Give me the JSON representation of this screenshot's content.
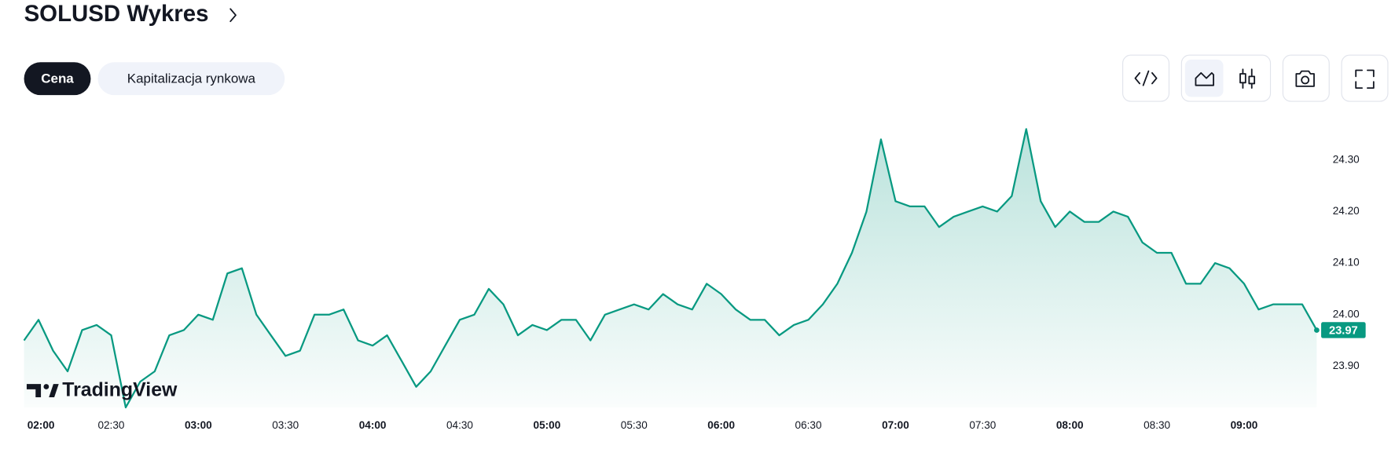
{
  "page_title": "SOLUSD Wykres",
  "tabs": [
    "Cena",
    "Kapitalizacja rynkowa"
  ],
  "watermark": "TradingView",
  "chart_data": {
    "type": "area",
    "color": "#089981",
    "x": [
      "02:00",
      "02:05",
      "02:10",
      "02:15",
      "02:20",
      "02:25",
      "02:30",
      "02:35",
      "02:40",
      "02:45",
      "02:50",
      "02:55",
      "03:00",
      "03:05",
      "03:10",
      "03:15",
      "03:20",
      "03:25",
      "03:30",
      "03:35",
      "03:40",
      "03:45",
      "03:50",
      "03:55",
      "04:00",
      "04:05",
      "04:10",
      "04:15",
      "04:20",
      "04:25",
      "04:30",
      "04:35",
      "04:40",
      "04:45",
      "04:50",
      "04:55",
      "05:00",
      "05:05",
      "05:10",
      "05:15",
      "05:20",
      "05:25",
      "05:30",
      "05:35",
      "05:40",
      "05:45",
      "05:50",
      "05:55",
      "06:00",
      "06:05",
      "06:10",
      "06:15",
      "06:20",
      "06:25",
      "06:30",
      "06:35",
      "06:40",
      "06:45",
      "06:50",
      "06:55",
      "07:00",
      "07:05",
      "07:10",
      "07:15",
      "07:20",
      "07:25",
      "07:30",
      "07:35",
      "07:40",
      "07:45",
      "07:50",
      "07:55",
      "08:00",
      "08:05",
      "08:10",
      "08:15",
      "08:20",
      "08:25",
      "08:30",
      "08:35",
      "08:40",
      "08:45",
      "08:50",
      "08:55",
      "09:00",
      "09:05",
      "09:10",
      "09:15",
      "09:20",
      "09:25"
    ],
    "values": [
      23.95,
      23.99,
      23.93,
      23.89,
      23.97,
      23.98,
      23.96,
      23.82,
      23.87,
      23.89,
      23.96,
      23.97,
      24.0,
      23.99,
      24.08,
      24.09,
      24.0,
      23.96,
      23.92,
      23.93,
      24.0,
      24.0,
      24.01,
      23.95,
      23.94,
      23.96,
      23.91,
      23.86,
      23.89,
      23.94,
      23.99,
      24.0,
      24.05,
      24.02,
      23.96,
      23.98,
      23.97,
      23.99,
      23.99,
      23.95,
      24.0,
      24.01,
      24.02,
      24.01,
      24.04,
      24.02,
      24.01,
      24.06,
      24.04,
      24.01,
      23.99,
      23.99,
      23.96,
      23.98,
      23.99,
      24.02,
      24.06,
      24.12,
      24.2,
      24.34,
      24.22,
      24.21,
      24.21,
      24.17,
      24.19,
      24.2,
      24.21,
      24.2,
      24.23,
      24.36,
      24.22,
      24.17,
      24.2,
      24.18,
      24.18,
      24.2,
      24.19,
      24.14,
      24.12,
      24.12,
      24.06,
      24.06,
      24.1,
      24.09,
      24.06,
      24.01,
      24.02,
      24.02,
      24.02,
      23.97
    ],
    "xlim": [
      "02:00",
      "09:25"
    ],
    "xticks": [
      "02:00",
      "02:30",
      "03:00",
      "03:30",
      "04:00",
      "04:30",
      "05:00",
      "05:30",
      "06:00",
      "06:30",
      "07:00",
      "07:30",
      "08:00",
      "08:30",
      "09:00"
    ],
    "ylim": [
      23.82,
      24.38
    ],
    "yticks": [
      {
        "value": 23.9,
        "label": "23.90"
      },
      {
        "value": 24.0,
        "label": "24.00"
      },
      {
        "value": 24.1,
        "label": "24.10"
      },
      {
        "value": 24.2,
        "label": "24.20"
      },
      {
        "value": 24.3,
        "label": "24.30"
      }
    ]
  }
}
